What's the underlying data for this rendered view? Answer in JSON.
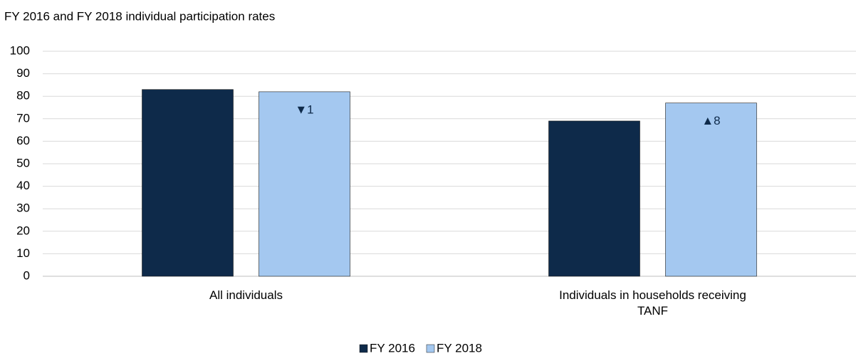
{
  "chart_data": {
    "type": "bar",
    "title": "FY 2016 and FY 2018 individual participation rates",
    "categories": [
      "All individuals",
      "Individuals in households receiving TANF"
    ],
    "series": [
      {
        "name": "FY 2016",
        "color": "#0e2a4a",
        "values": [
          83,
          69
        ]
      },
      {
        "name": "FY 2018",
        "color": "#a4c8f0",
        "values": [
          82,
          77
        ],
        "annotations": [
          "▼1",
          "▲8"
        ]
      }
    ],
    "ylim": [
      0,
      100
    ],
    "yticks": [
      0,
      10,
      20,
      30,
      40,
      50,
      60,
      70,
      80,
      90,
      100
    ],
    "grid": true,
    "legend": "bottom"
  }
}
